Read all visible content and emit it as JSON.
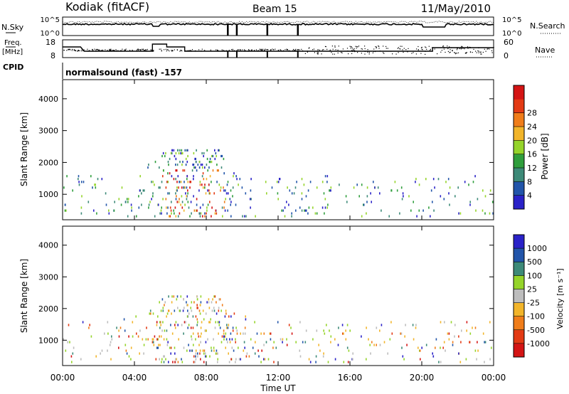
{
  "header": {
    "station": "Kodiak (fitACF)",
    "beam": "Beam 15",
    "date": "11/May/2010"
  },
  "nsky_panel": {
    "left_label": "N.Sky",
    "left_ticks": [
      "10^5",
      "10^0"
    ],
    "right_label": "N.Search",
    "right_ticks": [
      "10^5",
      "10^0"
    ]
  },
  "freq_panel": {
    "left_label_1": "Freq.",
    "left_label_2": "[MHz]",
    "left_ticks": [
      "18",
      "8"
    ],
    "right_label": "Nave",
    "right_ticks": [
      "60",
      "0"
    ]
  },
  "cpid": {
    "label": "CPID",
    "program": "normalsound (fast) -157"
  },
  "colors": {
    "power_scale": [
      "#2a22c8",
      "#2255aa",
      "#3d8a78",
      "#2f9e3c",
      "#95d42a",
      "#f2b52a",
      "#f07d1a",
      "#e33a14",
      "#d41414"
    ],
    "velocity_scale": [
      "#d41414",
      "#e33a14",
      "#f07d1a",
      "#f2b52a",
      "#bdbdbd",
      "#95d42a",
      "#3d8a78",
      "#2255aa",
      "#2a22c8"
    ],
    "grid": "#000000"
  },
  "chart_data": [
    {
      "type": "heatmap",
      "name": "power",
      "xlabel": "",
      "ylabel": "Slant Range [km]",
      "x_ticks": [
        "00:00",
        "04:00",
        "08:00",
        "12:00",
        "16:00",
        "20:00",
        "00:00"
      ],
      "xlim": [
        0,
        24
      ],
      "y_ticks": [
        "1000",
        "2000",
        "3000",
        "4000"
      ],
      "ylim": [
        200,
        4600
      ],
      "colorbar": {
        "label": "Power [dB]",
        "ticks": [
          "4",
          "8",
          "12",
          "16",
          "20",
          "24",
          "28"
        ],
        "range": [
          0,
          32
        ]
      }
    },
    {
      "type": "heatmap",
      "name": "velocity",
      "xlabel": "Time UT",
      "ylabel": "Slant Range [km]",
      "x_ticks": [
        "00:00",
        "04:00",
        "08:00",
        "12:00",
        "16:00",
        "20:00",
        "00:00"
      ],
      "xlim": [
        0,
        24
      ],
      "y_ticks": [
        "1000",
        "2000",
        "3000",
        "4000"
      ],
      "ylim": [
        200,
        4600
      ],
      "colorbar": {
        "label": "Velocity [m s⁻¹]",
        "ticks": [
          "1000",
          "500",
          "100",
          "25",
          "-25",
          "-100",
          "-500",
          "-1000"
        ]
      }
    }
  ]
}
